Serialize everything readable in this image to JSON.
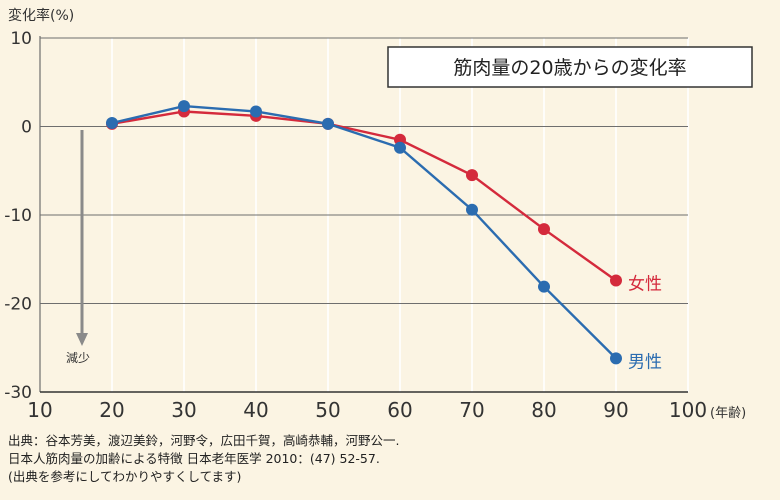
{
  "chart_data": {
    "type": "line",
    "title": "筋肉量の20歳からの変化率",
    "ylabel": "変化率(%)",
    "xlabel": "(年齢)",
    "annotation": "減少",
    "xlim": [
      10,
      100
    ],
    "ylim": [
      -30,
      10
    ],
    "x_ticks": [
      10,
      20,
      30,
      40,
      50,
      60,
      70,
      80,
      90,
      100
    ],
    "y_ticks": [
      10,
      0,
      -10,
      -20,
      -30
    ],
    "grid": true,
    "series": [
      {
        "name": "女性",
        "color": "#d42a3c",
        "x": [
          20,
          30,
          40,
          50,
          60,
          70,
          80,
          90
        ],
        "y": [
          0.3,
          1.7,
          1.2,
          0.3,
          -1.5,
          -5.5,
          -11.6,
          -17.4
        ]
      },
      {
        "name": "男性",
        "color": "#2b6cb0",
        "x": [
          20,
          30,
          40,
          50,
          60,
          70,
          80,
          90
        ],
        "y": [
          0.4,
          2.3,
          1.7,
          0.3,
          -2.4,
          -9.4,
          -18.1,
          -26.2
        ]
      }
    ]
  },
  "source": {
    "line1": "出典：谷本芳美，渡辺美鈴，河野令，広田千賀，高崎恭輔，河野公一.",
    "line2": "日本人筋肉量の加齢による特徴 日本老年医学 2010：(47) 52-57.",
    "line3": "(出典を参考にしてわかりやすくしてます)"
  }
}
